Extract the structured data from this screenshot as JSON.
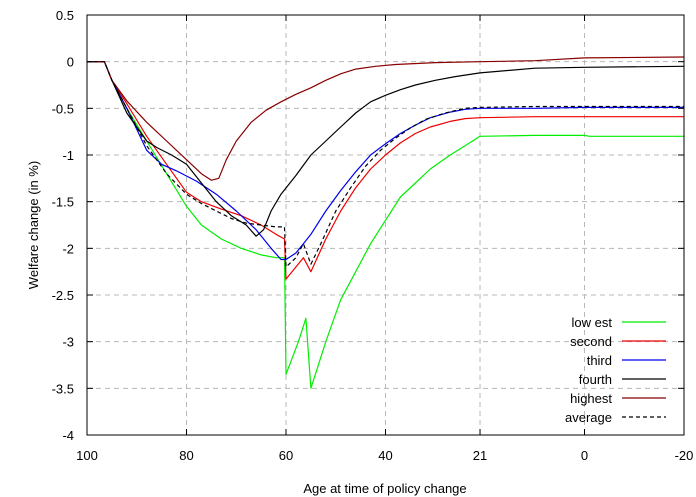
{
  "chart_data": {
    "type": "line",
    "xlabel": "Age at time of policy change",
    "ylabel": "Welfare change (in %)",
    "xlim": [
      100,
      -20
    ],
    "ylim": [
      -4,
      0.5
    ],
    "grid": true,
    "legend_position": "bottom-right",
    "x_ticks": [
      {
        "value": 100,
        "label": "100"
      },
      {
        "value": 80,
        "label": "80"
      },
      {
        "value": 60,
        "label": "60"
      },
      {
        "value": 40,
        "label": "40"
      },
      {
        "value": 21,
        "label": "21"
      },
      {
        "value": 0,
        "label": "0"
      },
      {
        "value": -20,
        "label": "-20"
      }
    ],
    "y_ticks": [
      {
        "value": 0.5,
        "label": "0.5"
      },
      {
        "value": 0,
        "label": "0"
      },
      {
        "value": -0.5,
        "label": "-0.5"
      },
      {
        "value": -1,
        "label": "-1"
      },
      {
        "value": -1.5,
        "label": "-1.5"
      },
      {
        "value": -2,
        "label": "-2"
      },
      {
        "value": -2.5,
        "label": "-2.5"
      },
      {
        "value": -3,
        "label": "-3"
      },
      {
        "value": -3.5,
        "label": "-3.5"
      },
      {
        "value": -4,
        "label": "-4"
      }
    ],
    "series": [
      {
        "name": "low est",
        "color": "#00ee00",
        "dash": "solid",
        "points": [
          [
            100,
            0
          ],
          [
            96.5,
            0
          ],
          [
            95,
            -0.2
          ],
          [
            92,
            -0.5
          ],
          [
            88,
            -0.85
          ],
          [
            84,
            -1.2
          ],
          [
            80,
            -1.55
          ],
          [
            77,
            -1.75
          ],
          [
            73,
            -1.9
          ],
          [
            69,
            -2.0
          ],
          [
            65,
            -2.07
          ],
          [
            62,
            -2.1
          ],
          [
            60.3,
            -2.1
          ],
          [
            60,
            -3.35
          ],
          [
            57.5,
            -3.0
          ],
          [
            56,
            -2.75
          ],
          [
            55,
            -3.5
          ],
          [
            52,
            -3.0
          ],
          [
            49,
            -2.55
          ],
          [
            46,
            -2.25
          ],
          [
            43,
            -1.95
          ],
          [
            40,
            -1.7
          ],
          [
            37,
            -1.45
          ],
          [
            34,
            -1.3
          ],
          [
            31,
            -1.15
          ],
          [
            27,
            -1.0
          ],
          [
            24,
            -0.9
          ],
          [
            21,
            -0.8
          ],
          [
            10,
            -0.79
          ],
          [
            0,
            -0.79
          ],
          [
            -1,
            -0.8
          ],
          [
            -8,
            -0.8
          ],
          [
            -20,
            -0.8
          ]
        ]
      },
      {
        "name": "second",
        "color": "#ee0000",
        "dash": "solid",
        "points": [
          [
            100,
            0
          ],
          [
            96.5,
            0
          ],
          [
            95,
            -0.2
          ],
          [
            92,
            -0.45
          ],
          [
            88,
            -0.8
          ],
          [
            84,
            -1.1
          ],
          [
            80,
            -1.4
          ],
          [
            77,
            -1.5
          ],
          [
            73,
            -1.58
          ],
          [
            69,
            -1.65
          ],
          [
            65,
            -1.75
          ],
          [
            62,
            -1.85
          ],
          [
            60.3,
            -1.9
          ],
          [
            60,
            -2.33
          ],
          [
            58,
            -2.2
          ],
          [
            56.5,
            -2.1
          ],
          [
            55,
            -2.25
          ],
          [
            52,
            -1.9
          ],
          [
            49,
            -1.6
          ],
          [
            46,
            -1.35
          ],
          [
            43,
            -1.15
          ],
          [
            40,
            -1.0
          ],
          [
            37,
            -0.87
          ],
          [
            34,
            -0.77
          ],
          [
            31,
            -0.7
          ],
          [
            27,
            -0.64
          ],
          [
            24,
            -0.61
          ],
          [
            21,
            -0.6
          ],
          [
            10,
            -0.59
          ],
          [
            0,
            -0.59
          ],
          [
            -20,
            -0.59
          ]
        ]
      },
      {
        "name": "third",
        "color": "#0000ee",
        "dash": "solid",
        "points": [
          [
            100,
            0
          ],
          [
            96.5,
            0
          ],
          [
            95,
            -0.2
          ],
          [
            92,
            -0.5
          ],
          [
            88,
            -0.95
          ],
          [
            85,
            -1.1
          ],
          [
            82,
            -1.17
          ],
          [
            78,
            -1.28
          ],
          [
            74,
            -1.42
          ],
          [
            70,
            -1.6
          ],
          [
            66,
            -1.8
          ],
          [
            63,
            -2.0
          ],
          [
            61,
            -2.12
          ],
          [
            60,
            -2.12
          ],
          [
            58,
            -2.05
          ],
          [
            56.5,
            -1.95
          ],
          [
            55,
            -1.85
          ],
          [
            52,
            -1.6
          ],
          [
            49,
            -1.38
          ],
          [
            46,
            -1.18
          ],
          [
            43,
            -1.0
          ],
          [
            40,
            -0.88
          ],
          [
            37,
            -0.77
          ],
          [
            34,
            -0.68
          ],
          [
            31,
            -0.6
          ],
          [
            27,
            -0.54
          ],
          [
            24,
            -0.51
          ],
          [
            21,
            -0.5
          ],
          [
            10,
            -0.5
          ],
          [
            0,
            -0.49
          ],
          [
            -20,
            -0.49
          ]
        ]
      },
      {
        "name": "fourth",
        "color": "#000000",
        "dash": "solid",
        "points": [
          [
            100,
            0
          ],
          [
            96.5,
            0
          ],
          [
            95,
            -0.2
          ],
          [
            92,
            -0.55
          ],
          [
            88,
            -0.85
          ],
          [
            86,
            -0.92
          ],
          [
            83,
            -1.0
          ],
          [
            80,
            -1.1
          ],
          [
            77,
            -1.3
          ],
          [
            74,
            -1.5
          ],
          [
            71,
            -1.65
          ],
          [
            68,
            -1.75
          ],
          [
            66,
            -1.87
          ],
          [
            64.5,
            -1.8
          ],
          [
            63,
            -1.6
          ],
          [
            61,
            -1.42
          ],
          [
            58,
            -1.22
          ],
          [
            55,
            -1.0
          ],
          [
            52,
            -0.85
          ],
          [
            49,
            -0.7
          ],
          [
            46,
            -0.55
          ],
          [
            43,
            -0.43
          ],
          [
            40,
            -0.36
          ],
          [
            37,
            -0.3
          ],
          [
            34,
            -0.25
          ],
          [
            30,
            -0.2
          ],
          [
            26,
            -0.16
          ],
          [
            21,
            -0.12
          ],
          [
            10,
            -0.07
          ],
          [
            0,
            -0.06
          ],
          [
            -20,
            -0.05
          ]
        ]
      },
      {
        "name": "highest",
        "color": "#880000",
        "dash": "solid",
        "points": [
          [
            100,
            0
          ],
          [
            96.5,
            0
          ],
          [
            95,
            -0.2
          ],
          [
            92,
            -0.42
          ],
          [
            88,
            -0.65
          ],
          [
            84,
            -0.85
          ],
          [
            80,
            -1.05
          ],
          [
            77,
            -1.2
          ],
          [
            75,
            -1.27
          ],
          [
            73.5,
            -1.25
          ],
          [
            72,
            -1.05
          ],
          [
            70,
            -0.85
          ],
          [
            67,
            -0.65
          ],
          [
            64,
            -0.52
          ],
          [
            61,
            -0.43
          ],
          [
            58,
            -0.35
          ],
          [
            55,
            -0.28
          ],
          [
            52,
            -0.2
          ],
          [
            49,
            -0.13
          ],
          [
            46,
            -0.08
          ],
          [
            42,
            -0.05
          ],
          [
            38,
            -0.03
          ],
          [
            30,
            -0.01
          ],
          [
            21,
            0.0
          ],
          [
            10,
            0.01
          ],
          [
            0,
            0.04
          ],
          [
            -20,
            0.05
          ]
        ]
      },
      {
        "name": "average",
        "color": "#000000",
        "dash": "dashed",
        "points": [
          [
            100,
            0
          ],
          [
            96.5,
            0
          ],
          [
            95,
            -0.2
          ],
          [
            92,
            -0.5
          ],
          [
            88,
            -0.9
          ],
          [
            84,
            -1.2
          ],
          [
            80,
            -1.42
          ],
          [
            77,
            -1.52
          ],
          [
            74,
            -1.6
          ],
          [
            71,
            -1.68
          ],
          [
            68,
            -1.73
          ],
          [
            65,
            -1.75
          ],
          [
            62,
            -1.77
          ],
          [
            60.3,
            -1.77
          ],
          [
            60,
            -2.2
          ],
          [
            58,
            -2.1
          ],
          [
            56.5,
            -1.95
          ],
          [
            55,
            -2.17
          ],
          [
            53,
            -1.95
          ],
          [
            50,
            -1.6
          ],
          [
            47,
            -1.35
          ],
          [
            44,
            -1.12
          ],
          [
            41,
            -0.95
          ],
          [
            38,
            -0.82
          ],
          [
            35,
            -0.71
          ],
          [
            32,
            -0.62
          ],
          [
            28,
            -0.55
          ],
          [
            24,
            -0.5
          ],
          [
            21,
            -0.49
          ],
          [
            10,
            -0.48
          ],
          [
            0,
            -0.48
          ],
          [
            -20,
            -0.48
          ]
        ]
      }
    ]
  }
}
